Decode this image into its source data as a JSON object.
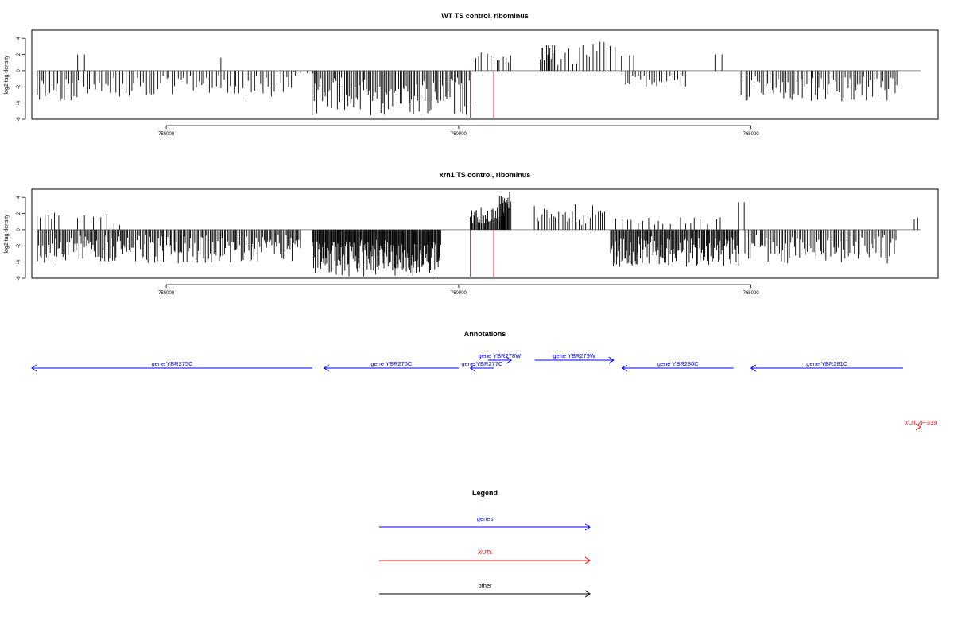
{
  "chart_data": [
    {
      "type": "bar",
      "title": "WT TS control, ribominus",
      "ylabel": "log2 tag density",
      "xlabel": "",
      "xlim": [
        752700,
        768200
      ],
      "ylim": [
        -6,
        5
      ],
      "yticks": [
        -6,
        -4,
        -2,
        0,
        2,
        4
      ],
      "xticks": [
        755000,
        760000,
        765000
      ],
      "xtick_labels": [
        "755000",
        "760000",
        "765000"
      ],
      "baseline": {
        "x": [
          752800,
          767900
        ],
        "y": 0
      },
      "markers": [
        {
          "x": 760200,
          "y": -5.8,
          "color": "#d62728"
        },
        {
          "x": 760600,
          "y": -5.8,
          "color": "#d62728"
        }
      ],
      "bins": [
        {
          "x": [
            752800,
            753500
          ],
          "y": [
            -3.8,
            -0.8
          ],
          "step": 35,
          "seed": 11
        },
        {
          "x": [
            753500,
            753600
          ],
          "y": [
            2.0,
            2.0
          ],
          "step": 100,
          "seed": 1
        },
        {
          "x": [
            753600,
            757200
          ],
          "y": [
            -3.2,
            -0.5
          ],
          "step": 50,
          "seed": 13
        },
        {
          "x": [
            755950,
            756000
          ],
          "y": [
            1.6,
            1.6
          ],
          "step": 100,
          "seed": 2
        },
        {
          "x": [
            757200,
            757500
          ],
          "y": [
            -0.4,
            -0.1
          ],
          "step": 100,
          "seed": 17
        },
        {
          "x": [
            757500,
            760200
          ],
          "y": [
            -5.5,
            -0.8
          ],
          "step": 25,
          "seed": 19
        },
        {
          "x": [
            760300,
            760400
          ],
          "y": [
            1.0,
            2.5
          ],
          "step": 40,
          "seed": 23
        },
        {
          "x": [
            760500,
            760900
          ],
          "y": [
            1.0,
            2.2
          ],
          "step": 50,
          "seed": 29
        },
        {
          "x": [
            761400,
            761650
          ],
          "y": [
            1.2,
            3.2
          ],
          "step": 20,
          "seed": 31
        },
        {
          "x": [
            761650,
            762700
          ],
          "y": [
            0.6,
            3.6
          ],
          "step": 60,
          "seed": 37
        },
        {
          "x": [
            762800,
            763000
          ],
          "y": [
            1.5,
            2.0
          ],
          "step": 100,
          "seed": 3
        },
        {
          "x": [
            762800,
            763900
          ],
          "y": [
            -2.0,
            -0.5
          ],
          "step": 45,
          "seed": 41
        },
        {
          "x": [
            764400,
            764500
          ],
          "y": [
            2.0,
            2.0
          ],
          "step": 100,
          "seed": 4
        },
        {
          "x": [
            764800,
            767500
          ],
          "y": [
            -3.8,
            -0.6
          ],
          "step": 35,
          "seed": 43
        }
      ]
    },
    {
      "type": "bar",
      "title": "xrn1 TS control, ribominus",
      "ylabel": "log2 tag density",
      "xlabel": "",
      "xlim": [
        752700,
        768200
      ],
      "ylim": [
        -6,
        5
      ],
      "yticks": [
        -6,
        -4,
        -2,
        0,
        2,
        4
      ],
      "xticks": [
        755000,
        760000,
        765000
      ],
      "xtick_labels": [
        "755000",
        "760000",
        "765000"
      ],
      "baseline": {
        "x": [
          752800,
          767900
        ],
        "y": 0
      },
      "markers": [
        {
          "x": 760200,
          "y": -5.8,
          "color": "#d62728"
        },
        {
          "x": 760600,
          "y": -5.8,
          "color": "#d62728"
        }
      ],
      "bins": [
        {
          "x": [
            752800,
            753200
          ],
          "y": [
            1.0,
            2.2
          ],
          "step": 60,
          "seed": 47
        },
        {
          "x": [
            752800,
            757300
          ],
          "y": [
            -4.2,
            -0.6
          ],
          "step": 22,
          "seed": 53
        },
        {
          "x": [
            753500,
            754300
          ],
          "y": [
            0.5,
            2.0
          ],
          "step": 120,
          "seed": 59
        },
        {
          "x": [
            757500,
            759700
          ],
          "y": [
            -5.8,
            -1.2
          ],
          "step": 12,
          "seed": 61
        },
        {
          "x": [
            760200,
            760800
          ],
          "y": [
            0.8,
            3.0
          ],
          "step": 15,
          "seed": 67
        },
        {
          "x": [
            760700,
            760900
          ],
          "y": [
            2.5,
            4.8
          ],
          "step": 12,
          "seed": 71
        },
        {
          "x": [
            761300,
            762500
          ],
          "y": [
            0.5,
            3.2
          ],
          "step": 40,
          "seed": 73
        },
        {
          "x": [
            762600,
            764800
          ],
          "y": [
            -4.6,
            -0.8
          ],
          "step": 16,
          "seed": 79
        },
        {
          "x": [
            762700,
            764500
          ],
          "y": [
            0.4,
            1.6
          ],
          "step": 90,
          "seed": 83
        },
        {
          "x": [
            764800,
            764900
          ],
          "y": [
            3.4,
            3.4
          ],
          "step": 100,
          "seed": 5
        },
        {
          "x": [
            764900,
            767500
          ],
          "y": [
            -4.2,
            -0.6
          ],
          "step": 28,
          "seed": 89
        },
        {
          "x": [
            767800,
            767900
          ],
          "y": [
            1.2,
            2.4
          ],
          "step": 60,
          "seed": 97
        }
      ]
    }
  ],
  "annotations": {
    "title": "Annotations",
    "xlim": [
      752700,
      768200
    ],
    "items": [
      {
        "label": "gene YBR275C",
        "x1": 752700,
        "x2": 757500,
        "dir": "left",
        "row": 0,
        "color": "#0000ff"
      },
      {
        "label": "gene YBR276C",
        "x1": 757700,
        "x2": 760000,
        "dir": "left",
        "row": 0,
        "color": "#0000ff"
      },
      {
        "label": "gene YBR277C",
        "x1": 760200,
        "x2": 760600,
        "dir": "left",
        "row": 0,
        "color": "#0000ff"
      },
      {
        "label": "gene YBR278W",
        "x1": 760500,
        "x2": 760900,
        "dir": "right",
        "row": 1,
        "color": "#0000ff"
      },
      {
        "label": "gene YBR279W",
        "x1": 761300,
        "x2": 762650,
        "dir": "right",
        "row": 1,
        "color": "#0000ff"
      },
      {
        "label": "gene YBR280C",
        "x1": 762800,
        "x2": 764700,
        "dir": "left",
        "row": 0,
        "color": "#0000ff"
      },
      {
        "label": "gene YBR281C",
        "x1": 765000,
        "x2": 767600,
        "dir": "left",
        "row": 0,
        "color": "#0000ff"
      },
      {
        "label": "XUT 2F-319",
        "x1": 767900,
        "x2": 768200,
        "dir": "right",
        "row": 2,
        "color": "#ff0000"
      }
    ]
  },
  "legend": {
    "title": "Legend",
    "items": [
      {
        "label": "genes",
        "color": "#0000ff"
      },
      {
        "label": "XUTs",
        "color": "#ff0000"
      },
      {
        "label": "other",
        "color": "#000000"
      }
    ]
  }
}
